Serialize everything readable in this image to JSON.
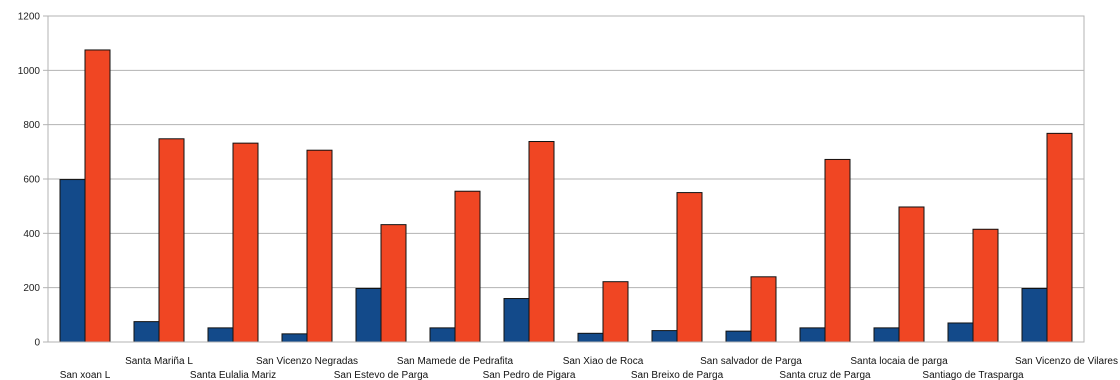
{
  "chart_data": {
    "type": "bar",
    "title": "",
    "xlabel": "",
    "ylabel": "",
    "ylim": [
      0,
      1200
    ],
    "yticks": [
      0,
      200,
      400,
      600,
      800,
      1000,
      1200
    ],
    "grid": true,
    "legend": "none",
    "categories": [
      "San xoan L",
      "Santa Mariña L",
      "Santa Eulalia Mariz",
      "San Vicenzo Negradas",
      "San Estevo de Parga",
      "San Mamede de Pedrafita",
      "San Pedro de Pigara",
      "San Xiao de Roca",
      "San Breixo de Parga",
      "San salvador de Parga",
      "Santa cruz de Parga",
      "Santa locaia de parga",
      "Santiago de Trasparga",
      "San Vicenzo de Vilares"
    ],
    "series": [
      {
        "color": "#134a8a",
        "values": [
          598,
          75,
          52,
          30,
          197,
          52,
          160,
          32,
          42,
          40,
          52,
          52,
          70,
          197
        ]
      },
      {
        "color": "#f04623",
        "values": [
          1075,
          748,
          732,
          706,
          432,
          555,
          738,
          222,
          550,
          240,
          672,
          497,
          415,
          768
        ]
      }
    ]
  }
}
